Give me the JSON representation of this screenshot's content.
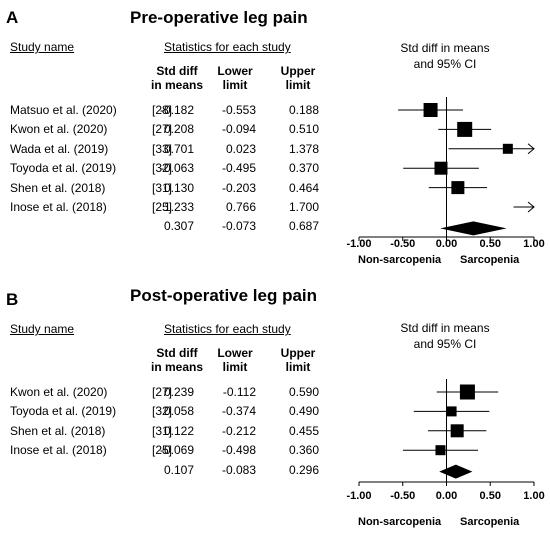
{
  "chart_data": [
    {
      "type": "forest",
      "panel_label": "A",
      "title": "Pre-operative leg pain",
      "study_header": "Study name",
      "stats_header": "Statistics for each study",
      "columns": [
        {
          "line1": "Std diff",
          "line2": "in means"
        },
        {
          "line1": "Lower",
          "line2": "limit"
        },
        {
          "line1": "Upper",
          "line2": "limit"
        }
      ],
      "ci_title_line1": "Std diff in means",
      "ci_title_line2": "and 95% CI",
      "studies": [
        {
          "name": "Matsuo et al. (2020)",
          "ref": "[28]",
          "smd": "-0.182",
          "lower": "-0.553",
          "upper": "0.188",
          "smd_v": -0.182,
          "lower_v": -0.553,
          "upper_v": 0.188,
          "box": 14
        },
        {
          "name": "Kwon et al. (2020)",
          "ref": "[27]",
          "smd": "0.208",
          "lower": "-0.094",
          "upper": "0.510",
          "smd_v": 0.208,
          "lower_v": -0.094,
          "upper_v": 0.51,
          "box": 15
        },
        {
          "name": "Wada et al. (2019)",
          "ref": "[33]",
          "smd": "0.701",
          "lower": "0.023",
          "upper": "1.378",
          "smd_v": 0.701,
          "lower_v": 0.023,
          "upper_v": 1.378,
          "box": 10
        },
        {
          "name": "Toyoda et al. (2019)",
          "ref": "[32]",
          "smd": "-0.063",
          "lower": "-0.495",
          "upper": "0.370",
          "smd_v": -0.063,
          "lower_v": -0.495,
          "upper_v": 0.37,
          "box": 13
        },
        {
          "name": "Shen et al. (2018)",
          "ref": "[31]",
          "smd": "0.130",
          "lower": "-0.203",
          "upper": "0.464",
          "smd_v": 0.13,
          "lower_v": -0.203,
          "upper_v": 0.464,
          "box": 13
        },
        {
          "name": "Inose et al. (2018)",
          "ref": "[25]",
          "smd": "1.233",
          "lower": "0.766",
          "upper": "1.700",
          "smd_v": 1.233,
          "lower_v": 0.766,
          "upper_v": 1.7,
          "box": 0
        }
      ],
      "pooled": {
        "smd": "0.307",
        "lower": "-0.073",
        "upper": "0.687",
        "smd_v": 0.307,
        "lower_v": -0.073,
        "upper_v": 0.687
      },
      "xlim": [
        -1.0,
        1.0
      ],
      "ticks": [
        "-1.00",
        "-0.50",
        "0.00",
        "0.50",
        "1.00"
      ],
      "tick_values": [
        -1.0,
        -0.5,
        0.0,
        0.5,
        1.0
      ],
      "left_label": "Non-sarcopenia",
      "right_label": "Sarcopenia"
    },
    {
      "type": "forest",
      "panel_label": "B",
      "title": "Post-operative leg pain",
      "study_header": "Study name",
      "stats_header": "Statistics for each study",
      "columns": [
        {
          "line1": "Std diff",
          "line2": "in means"
        },
        {
          "line1": "Lower",
          "line2": "limit"
        },
        {
          "line1": "Upper",
          "line2": "limit"
        }
      ],
      "ci_title_line1": "Std diff in means",
      "ci_title_line2": "and 95% CI",
      "studies": [
        {
          "name": "Kwon et al. (2020)",
          "ref": "[27]",
          "smd": "0.239",
          "lower": "-0.112",
          "upper": "0.590",
          "smd_v": 0.239,
          "lower_v": -0.112,
          "upper_v": 0.59,
          "box": 15
        },
        {
          "name": "Toyoda et al. (2019)",
          "ref": "[32]",
          "smd": "0.058",
          "lower": "-0.374",
          "upper": "0.490",
          "smd_v": 0.058,
          "lower_v": -0.374,
          "upper_v": 0.49,
          "box": 10
        },
        {
          "name": "Shen et al. (2018)",
          "ref": "[31]",
          "smd": "0.122",
          "lower": "-0.212",
          "upper": "0.455",
          "smd_v": 0.122,
          "lower_v": -0.212,
          "upper_v": 0.455,
          "box": 13
        },
        {
          "name": "Inose et al. (2018)",
          "ref": "[25]",
          "smd": "-0.069",
          "lower": "-0.498",
          "upper": "0.360",
          "smd_v": -0.069,
          "lower_v": -0.498,
          "upper_v": 0.36,
          "box": 10
        }
      ],
      "pooled": {
        "smd": "0.107",
        "lower": "-0.083",
        "upper": "0.296",
        "smd_v": 0.107,
        "lower_v": -0.083,
        "upper_v": 0.296
      },
      "xlim": [
        -1.0,
        1.0
      ],
      "ticks": [
        "-1.00",
        "-0.50",
        "0.00",
        "0.50",
        "1.00"
      ],
      "tick_values": [
        -1.0,
        -0.5,
        0.0,
        0.5,
        1.0
      ],
      "left_label": "Non-sarcopenia",
      "right_label": "Sarcopenia"
    }
  ]
}
